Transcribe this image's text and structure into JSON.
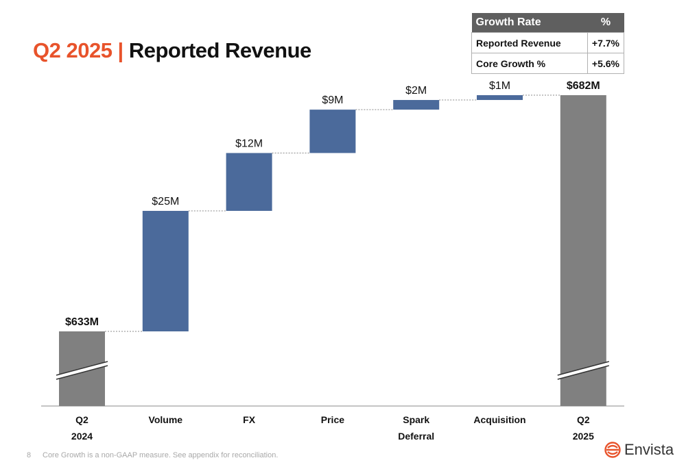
{
  "title": {
    "accent": "Q2 2025 |",
    "rest": "Reported Revenue"
  },
  "growth_table": {
    "header": {
      "label": "Growth Rate",
      "unit": "%"
    },
    "rows": [
      {
        "label": "Reported Revenue",
        "value": "+7.7%"
      },
      {
        "label": "Core Growth %",
        "value": "+5.6%"
      }
    ]
  },
  "chart_data": {
    "type": "waterfall",
    "title": "",
    "unit": "$M",
    "steps": [
      {
        "category": [
          "Q2",
          "2024"
        ],
        "kind": "total",
        "value": 633,
        "label": "$633M"
      },
      {
        "category": [
          "Volume"
        ],
        "kind": "delta",
        "value": 25,
        "label": "$25M"
      },
      {
        "category": [
          "FX"
        ],
        "kind": "delta",
        "value": 12,
        "label": "$12M"
      },
      {
        "category": [
          "Price"
        ],
        "kind": "delta",
        "value": 9,
        "label": "$9M"
      },
      {
        "category": [
          "Spark",
          "Deferral"
        ],
        "kind": "delta",
        "value": 2,
        "label": "$2M"
      },
      {
        "category": [
          "Acquisition"
        ],
        "kind": "delta",
        "value": 1,
        "label": "$1M"
      },
      {
        "category": [
          "Q2",
          "2025"
        ],
        "kind": "total",
        "value": 682,
        "label": "$682M"
      }
    ],
    "axis_break": true,
    "colors": {
      "total": "#808080",
      "delta": "#4b6a9b",
      "connector": "#888888",
      "axis": "#b0b0b0"
    }
  },
  "footer": {
    "page": "8",
    "note": "Core Growth is a non-GAAP measure.  See appendix for reconciliation."
  },
  "logo": {
    "text": "Envista",
    "icon": "envista-logo-icon",
    "color": "#e8532b"
  }
}
